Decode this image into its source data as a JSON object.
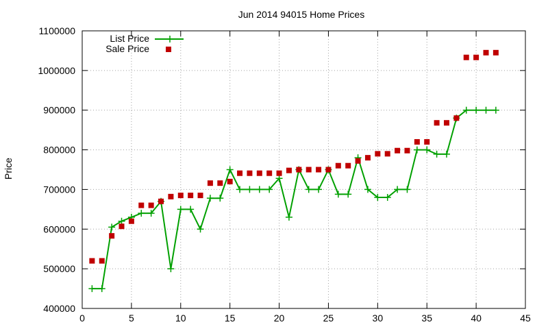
{
  "chart_data": {
    "type": "line",
    "title": "Jun 2014 94015 Home Prices",
    "xlabel": "",
    "ylabel": "Price",
    "xlim": [
      0,
      45
    ],
    "ylim": [
      400000,
      1100000
    ],
    "xticks": [
      0,
      5,
      10,
      15,
      20,
      25,
      30,
      35,
      40,
      45
    ],
    "yticks": [
      400000,
      500000,
      600000,
      700000,
      800000,
      900000,
      1000000,
      1100000
    ],
    "grid": true,
    "legend_position": "top-left",
    "x": [
      1,
      2,
      3,
      4,
      5,
      6,
      7,
      8,
      9,
      10,
      11,
      12,
      13,
      14,
      15,
      16,
      17,
      18,
      19,
      20,
      21,
      22,
      23,
      24,
      25,
      26,
      27,
      28,
      29,
      30,
      31,
      32,
      33,
      34,
      35,
      36,
      37,
      38,
      39,
      40,
      41,
      42
    ],
    "series": [
      {
        "name": "List Price",
        "style": "lines+crosses",
        "color": "#00a000",
        "values": [
          450000,
          450000,
          605000,
          620000,
          630000,
          640000,
          640000,
          670000,
          500000,
          650000,
          650000,
          600000,
          678000,
          678000,
          750000,
          700000,
          700000,
          700000,
          700000,
          728000,
          630000,
          750000,
          700000,
          700000,
          750000,
          688000,
          688000,
          780000,
          700000,
          680000,
          680000,
          700000,
          700000,
          800000,
          800000,
          789000,
          789000,
          880000,
          900000,
          900000,
          900000,
          900000
        ]
      },
      {
        "name": "Sale Price",
        "style": "squares",
        "color": "#c00000",
        "values": [
          520000,
          520000,
          583000,
          607000,
          620000,
          660000,
          660000,
          670000,
          682000,
          685000,
          685000,
          685000,
          716000,
          716000,
          720000,
          741000,
          741000,
          741000,
          741000,
          741000,
          748000,
          750000,
          750000,
          750000,
          750000,
          760000,
          760000,
          772000,
          780000,
          790000,
          790000,
          798000,
          798000,
          820000,
          820000,
          868000,
          868000,
          880000,
          1033000,
          1033000,
          1045000,
          1045000
        ]
      }
    ]
  }
}
